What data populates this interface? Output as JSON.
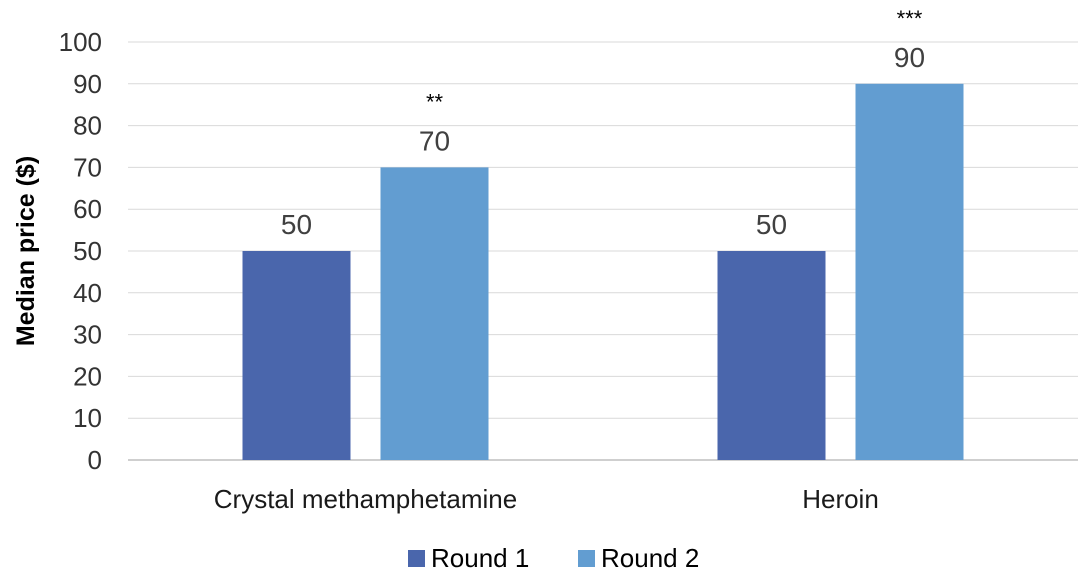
{
  "chart_data": {
    "type": "bar",
    "title": "",
    "xlabel": "",
    "ylabel": "Median price ($)",
    "ylim": [
      0,
      100
    ],
    "yticks": [
      0,
      10,
      20,
      30,
      40,
      50,
      60,
      70,
      80,
      90,
      100
    ],
    "grid": true,
    "legend_position": "bottom",
    "categories": [
      "Crystal methamphetamine",
      "Heroin"
    ],
    "series": [
      {
        "name": "Round 1",
        "values": [
          50,
          50
        ],
        "color": "#4a66ac"
      },
      {
        "name": "Round 2",
        "values": [
          70,
          90
        ],
        "color": "#629dd1"
      }
    ],
    "data_labels": [
      [
        "50",
        "50"
      ],
      [
        "70",
        "90"
      ]
    ],
    "significance": [
      [
        "",
        ""
      ],
      [
        "**",
        "***"
      ]
    ]
  }
}
